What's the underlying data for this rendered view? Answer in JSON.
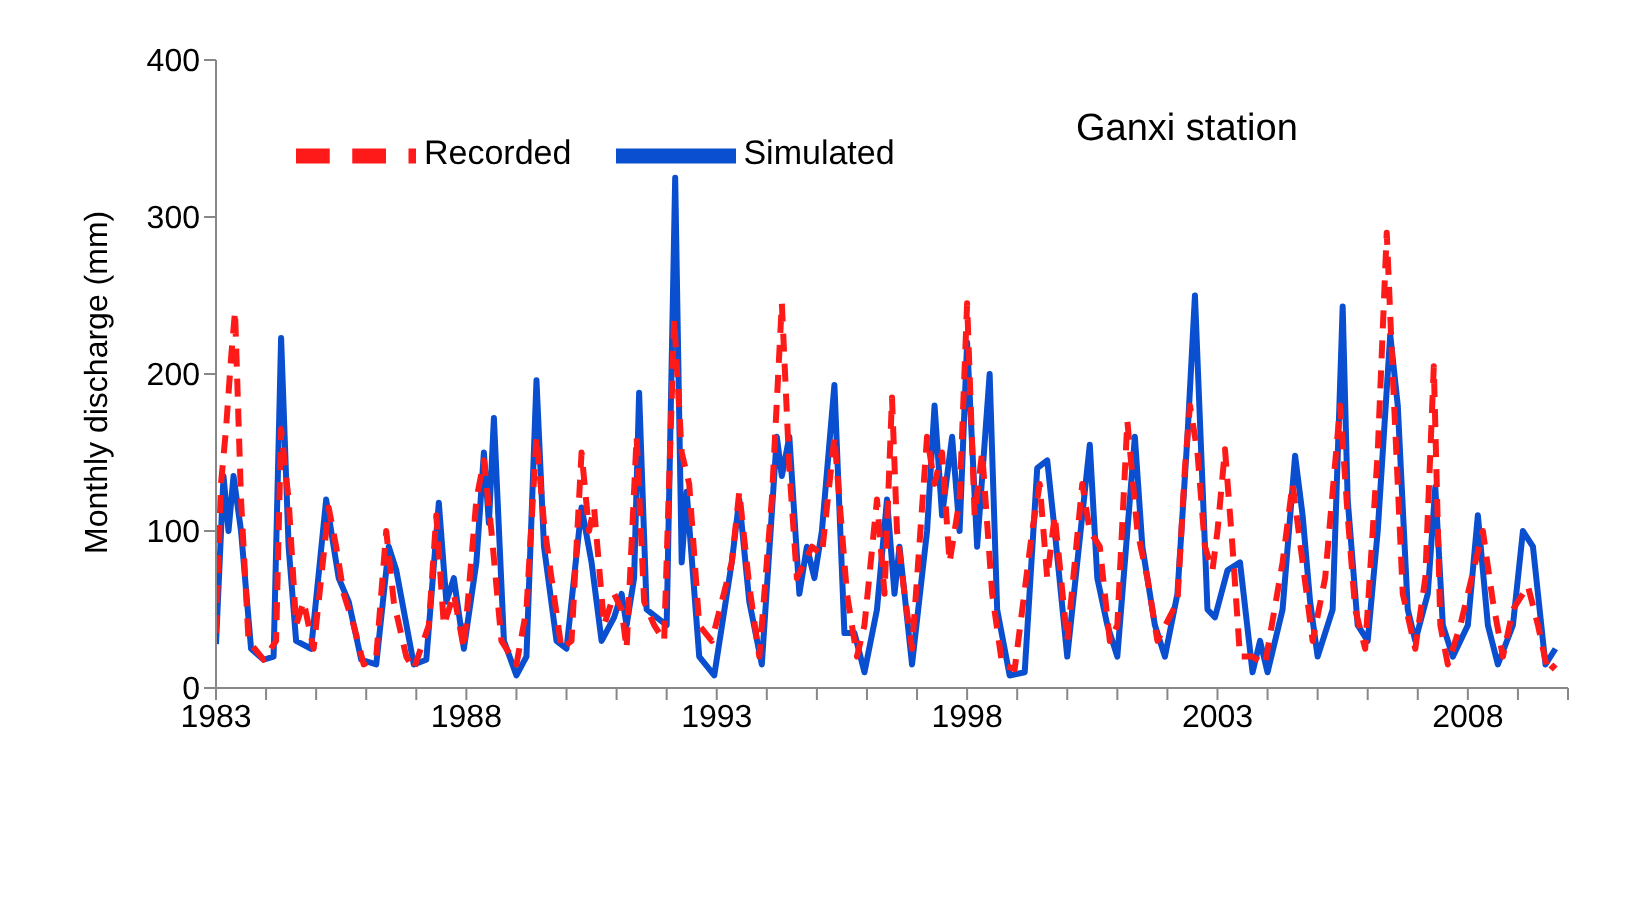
{
  "chart_data": {
    "type": "line",
    "title": "Ganxi station",
    "ylabel": "Monthly discharge (mm)",
    "xlim": [
      1983,
      2010
    ],
    "ylim": [
      0,
      400
    ],
    "yticks": [
      0,
      100,
      200,
      300,
      400
    ],
    "xticks": [
      1983,
      {
        "value": 1984,
        "label": null
      },
      {
        "value": 1985,
        "label": null
      },
      {
        "value": 1986,
        "label": null
      },
      {
        "value": 1987,
        "label": null
      },
      1988,
      {
        "value": 1989,
        "label": null
      },
      {
        "value": 1990,
        "label": null
      },
      {
        "value": 1991,
        "label": null
      },
      {
        "value": 1992,
        "label": null
      },
      1993,
      {
        "value": 1994,
        "label": null
      },
      {
        "value": 1995,
        "label": null
      },
      {
        "value": 1996,
        "label": null
      },
      {
        "value": 1997,
        "label": null
      },
      1998,
      {
        "value": 1999,
        "label": null
      },
      {
        "value": 2000,
        "label": null
      },
      {
        "value": 2001,
        "label": null
      },
      {
        "value": 2002,
        "label": null
      },
      2003,
      {
        "value": 2004,
        "label": null
      },
      {
        "value": 2005,
        "label": null
      },
      {
        "value": 2006,
        "label": null
      },
      {
        "value": 2007,
        "label": null
      },
      2008,
      {
        "value": 2009,
        "label": null
      },
      {
        "value": 2010,
        "label": null
      }
    ],
    "grid": false,
    "legend": "top left",
    "marker": "none",
    "series": [
      {
        "name": "Simulated",
        "color": "#0a4fd0",
        "line_style": "solid",
        "x": [
          1983.0,
          1983.15,
          1983.25,
          1983.35,
          1983.5,
          1983.7,
          1983.95,
          1984.15,
          1984.3,
          1984.45,
          1984.6,
          1984.9,
          1985.2,
          1985.45,
          1985.65,
          1985.9,
          1986.2,
          1986.45,
          1986.6,
          1986.95,
          1987.2,
          1987.45,
          1987.6,
          1987.75,
          1987.95,
          1988.2,
          1988.35,
          1988.45,
          1988.55,
          1988.75,
          1989.0,
          1989.2,
          1989.4,
          1989.55,
          1989.8,
          1990.0,
          1990.3,
          1990.5,
          1990.7,
          1990.95,
          1991.1,
          1991.2,
          1991.35,
          1991.45,
          1991.6,
          1991.8,
          1992.0,
          1992.17,
          1992.3,
          1992.4,
          1992.65,
          1992.95,
          1993.3,
          1993.45,
          1993.65,
          1993.9,
          1994.2,
          1994.3,
          1994.45,
          1994.65,
          1994.8,
          1994.95,
          1995.1,
          1995.35,
          1995.55,
          1995.75,
          1995.95,
          1996.2,
          1996.4,
          1996.55,
          1996.65,
          1996.9,
          1997.2,
          1997.35,
          1997.5,
          1997.7,
          1997.85,
          1998.0,
          1998.2,
          1998.45,
          1998.6,
          1998.85,
          1999.15,
          1999.4,
          1999.6,
          1999.75,
          2000.0,
          2000.3,
          2000.45,
          2000.6,
          2000.8,
          2001.0,
          2001.2,
          2001.35,
          2001.5,
          2001.75,
          2001.95,
          2002.2,
          2002.4,
          2002.55,
          2002.7,
          2002.8,
          2002.95,
          2003.2,
          2003.45,
          2003.7,
          2003.85,
          2004.0,
          2004.3,
          2004.55,
          2004.7,
          2004.85,
          2005.0,
          2005.3,
          2005.5,
          2005.6,
          2005.8,
          2006.0,
          2006.2,
          2006.45,
          2006.6,
          2006.8,
          2006.95,
          2007.2,
          2007.35,
          2007.5,
          2007.7,
          2008.0,
          2008.2,
          2008.4,
          2008.6,
          2008.9,
          2009.1,
          2009.3,
          2009.55,
          2009.75
        ],
        "values": [
          28,
          135,
          100,
          135,
          100,
          25,
          18,
          20,
          223,
          90,
          30,
          25,
          120,
          70,
          55,
          18,
          15,
          90,
          75,
          15,
          18,
          118,
          55,
          70,
          25,
          80,
          150,
          105,
          172,
          30,
          8,
          20,
          196,
          90,
          30,
          25,
          115,
          80,
          30,
          45,
          60,
          40,
          70,
          188,
          50,
          45,
          40,
          325,
          80,
          125,
          20,
          8,
          80,
          120,
          55,
          15,
          160,
          135,
          160,
          60,
          90,
          70,
          100,
          193,
          35,
          35,
          10,
          50,
          120,
          60,
          90,
          15,
          100,
          180,
          110,
          160,
          100,
          220,
          90,
          200,
          50,
          8,
          10,
          140,
          145,
          100,
          20,
          110,
          155,
          70,
          40,
          20,
          100,
          160,
          90,
          40,
          20,
          60,
          160,
          250,
          130,
          50,
          45,
          75,
          80,
          10,
          30,
          10,
          50,
          148,
          110,
          55,
          20,
          50,
          243,
          120,
          40,
          30,
          100,
          225,
          180,
          50,
          30,
          60,
          128,
          40,
          20,
          40,
          110,
          40,
          15,
          40,
          100,
          90,
          15,
          25
        ]
      },
      {
        "name": "Recorded",
        "color": "#ff1a1a",
        "line_style": "dashed",
        "x": [
          1983.0,
          1983.1,
          1983.2,
          1983.3,
          1983.38,
          1983.5,
          1983.65,
          1983.95,
          1984.2,
          1984.3,
          1984.45,
          1984.6,
          1984.75,
          1984.95,
          1985.25,
          1985.4,
          1985.55,
          1985.75,
          1985.95,
          1986.2,
          1986.4,
          1986.55,
          1986.8,
          1986.95,
          1987.25,
          1987.4,
          1987.55,
          1987.75,
          1987.95,
          1988.2,
          1988.35,
          1988.5,
          1988.7,
          1989.0,
          1989.2,
          1989.4,
          1989.55,
          1989.7,
          1989.9,
          1990.1,
          1990.3,
          1990.45,
          1990.55,
          1990.75,
          1990.95,
          1991.1,
          1991.2,
          1991.4,
          1991.55,
          1991.75,
          1991.95,
          1992.15,
          1992.3,
          1992.45,
          1992.65,
          1992.9,
          1993.3,
          1993.45,
          1993.65,
          1993.85,
          1994.1,
          1994.3,
          1994.45,
          1994.6,
          1994.75,
          1994.9,
          1995.1,
          1995.35,
          1995.6,
          1995.8,
          1995.95,
          1996.2,
          1996.35,
          1996.5,
          1996.6,
          1996.75,
          1996.9,
          1997.2,
          1997.35,
          1997.5,
          1997.65,
          1997.85,
          1998.0,
          1998.15,
          1998.3,
          1998.5,
          1998.7,
          1998.95,
          1999.3,
          1999.45,
          1999.6,
          1999.75,
          2000.0,
          2000.3,
          2000.45,
          2000.65,
          2000.85,
          2001.0,
          2001.2,
          2001.4,
          2001.6,
          2001.8,
          2002.2,
          2002.35,
          2002.45,
          2002.6,
          2002.75,
          2002.9,
          2003.0,
          2003.15,
          2003.3,
          2003.45,
          2003.7,
          2003.95,
          2004.3,
          2004.5,
          2004.7,
          2004.9,
          2005.15,
          2005.45,
          2005.6,
          2005.75,
          2005.95,
          2006.2,
          2006.38,
          2006.5,
          2006.7,
          2006.95,
          2007.15,
          2007.32,
          2007.45,
          2007.6,
          2007.85,
          2008.15,
          2008.3,
          2008.5,
          2008.7,
          2008.9,
          2009.2,
          2009.4,
          2009.6,
          2009.75
        ],
        "values": [
          35,
          130,
          165,
          210,
          240,
          120,
          30,
          18,
          30,
          165,
          120,
          40,
          55,
          25,
          115,
          90,
          60,
          40,
          15,
          20,
          100,
          55,
          20,
          12,
          40,
          110,
          40,
          60,
          25,
          120,
          145,
          100,
          30,
          15,
          50,
          160,
          105,
          70,
          25,
          30,
          150,
          100,
          115,
          40,
          60,
          50,
          25,
          160,
          55,
          40,
          30,
          235,
          150,
          130,
          40,
          30,
          80,
          125,
          65,
          20,
          120,
          245,
          140,
          70,
          80,
          90,
          85,
          160,
          60,
          20,
          40,
          120,
          60,
          185,
          100,
          60,
          25,
          160,
          130,
          150,
          80,
          120,
          245,
          110,
          150,
          60,
          15,
          12,
          100,
          130,
          70,
          110,
          30,
          130,
          100,
          90,
          30,
          40,
          170,
          100,
          70,
          30,
          55,
          140,
          180,
          150,
          90,
          75,
          100,
          152,
          90,
          20,
          20,
          15,
          80,
          130,
          80,
          30,
          70,
          180,
          110,
          50,
          25,
          150,
          290,
          200,
          60,
          25,
          70,
          205,
          40,
          15,
          40,
          80,
          100,
          55,
          20,
          50,
          65,
          40,
          10,
          15
        ]
      }
    ]
  }
}
